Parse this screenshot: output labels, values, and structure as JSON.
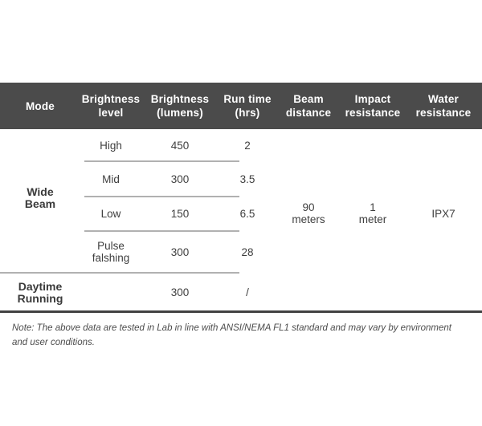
{
  "colors": {
    "header_bg": "#4b4b4b",
    "header_text": "#ffffff",
    "body_text": "#3f3f3f",
    "row_divider": "#b1b1b1",
    "bottom_rule": "#424242",
    "note_text": "#4c4c4c"
  },
  "table": {
    "header": {
      "mode": {
        "line1": "Mode"
      },
      "brightness_level": {
        "line1": "Brightness",
        "line2": "level"
      },
      "brightness_lumens": {
        "line1": "Brightness",
        "line2": "(lumens)"
      },
      "run_time": {
        "line1": "Run time",
        "line2": "(hrs)"
      },
      "beam_distance": {
        "line1": "Beam",
        "line2": "distance"
      },
      "impact_resistance": {
        "line1": "Impact",
        "line2": "resistance"
      },
      "water_resistance": {
        "line1": "Water",
        "line2": "resistance"
      }
    },
    "wide_beam": {
      "label_line1": "Wide",
      "label_line2": "Beam",
      "rows": [
        {
          "level": "High",
          "lumens": "450",
          "run_time": "2"
        },
        {
          "level": "Mid",
          "lumens": "300",
          "run_time": "3.5"
        },
        {
          "level": "Low",
          "lumens": "150",
          "run_time": "6.5"
        },
        {
          "level_line1": "Pulse",
          "level_line2": "falshing",
          "lumens": "300",
          "run_time": "28"
        }
      ]
    },
    "daytime_running": {
      "label_line1": "Daytime",
      "label_line2": "Running",
      "brightness_level": "",
      "lumens": "300",
      "run_time": "/"
    },
    "shared": {
      "beam_distance_line1": "90",
      "beam_distance_line2": "meters",
      "impact_line1": "1",
      "impact_line2": "meter",
      "water_resistance": "IPX7"
    }
  },
  "note": {
    "line1": "Note: The above data are tested in Lab in line with ANSI/NEMA FL1 standard and may vary by environment",
    "line2": "and user conditions."
  }
}
